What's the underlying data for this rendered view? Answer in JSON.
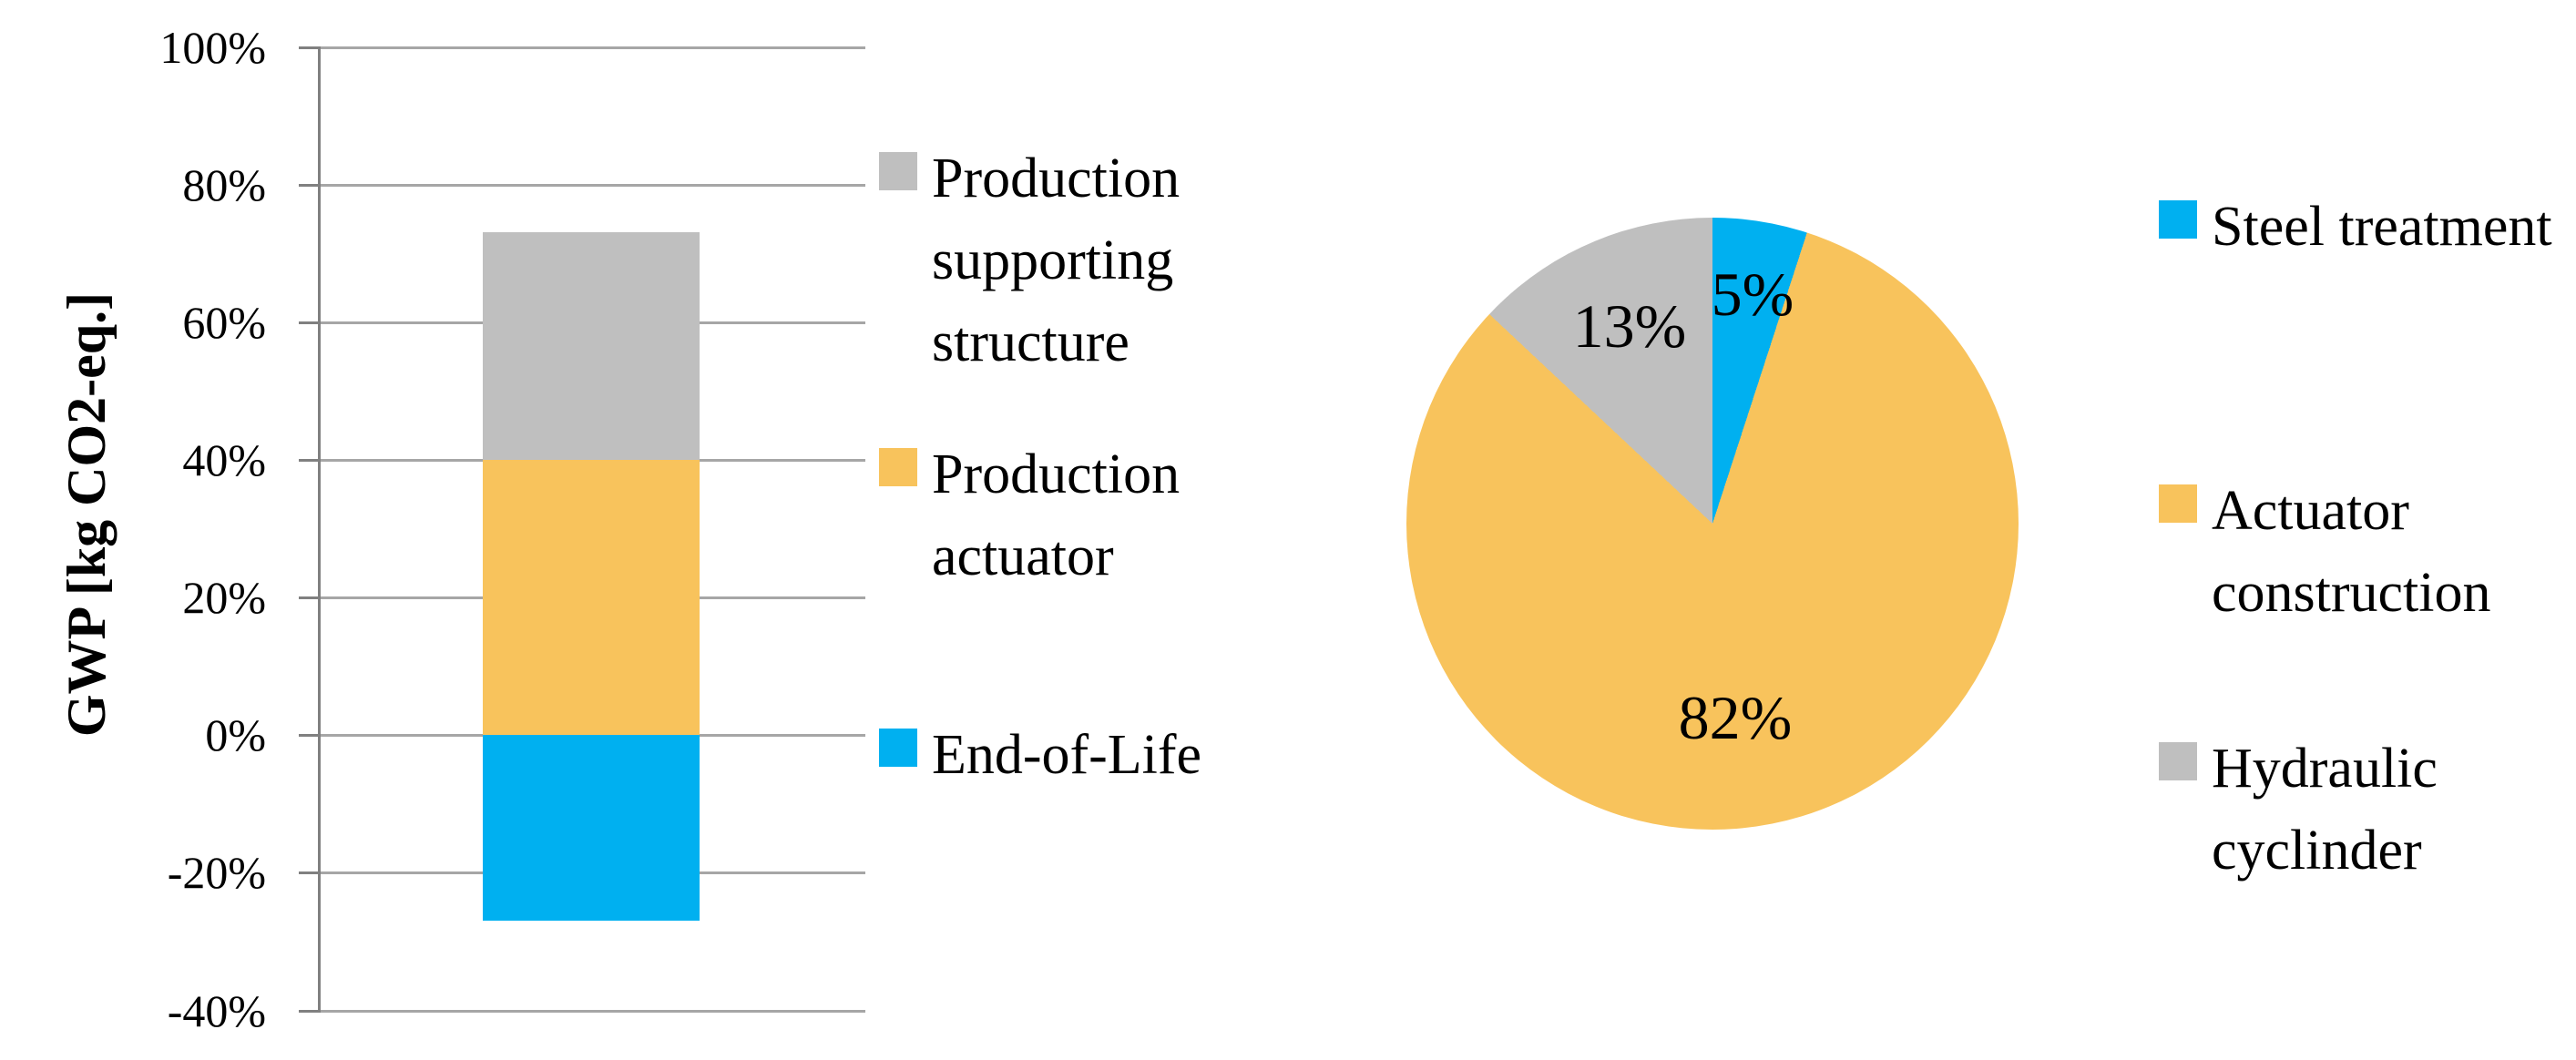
{
  "chart_data": [
    {
      "type": "bar",
      "stacked": true,
      "title": "",
      "xlabel": "",
      "ylabel": "GWP [kg CO2-eq.]",
      "ylim": [
        -40,
        100
      ],
      "grid": true,
      "legend_position": "right",
      "yticks": [
        "100%",
        "80%",
        "60%",
        "40%",
        "20%",
        "0%",
        "-20%",
        "-40%"
      ],
      "categories": [
        ""
      ],
      "series": [
        {
          "name": "Production supporting structure",
          "values": [
            33
          ],
          "range": [
            40,
            73
          ],
          "color": "#bfbfbf"
        },
        {
          "name": "Production actuator",
          "values": [
            40
          ],
          "range": [
            0,
            40
          ],
          "color": "#f8c35c"
        },
        {
          "name": "End-of-Life",
          "values": [
            -27
          ],
          "range": [
            -27,
            0
          ],
          "color": "#00b0f0"
        }
      ]
    },
    {
      "type": "pie",
      "start_angle_deg": 0,
      "direction": "clockwise",
      "legend_position": "right",
      "slices": [
        {
          "label": "Steel treatment",
          "value": 5,
          "label_text": "5%",
          "color": "#00b0f0"
        },
        {
          "label": "Actuator construction",
          "value": 82,
          "label_text": "82%",
          "color": "#f8c35c"
        },
        {
          "label": "Hydraulic cyclinder",
          "value": 13,
          "label_text": "13%",
          "color": "#bfbfbf"
        }
      ]
    }
  ],
  "colors": {
    "blue": "#00b0f0",
    "orange": "#f8c35c",
    "gray": "#bfbfbf",
    "gridline": "#a6a6a6",
    "axis": "#808080",
    "text": "#000000"
  }
}
